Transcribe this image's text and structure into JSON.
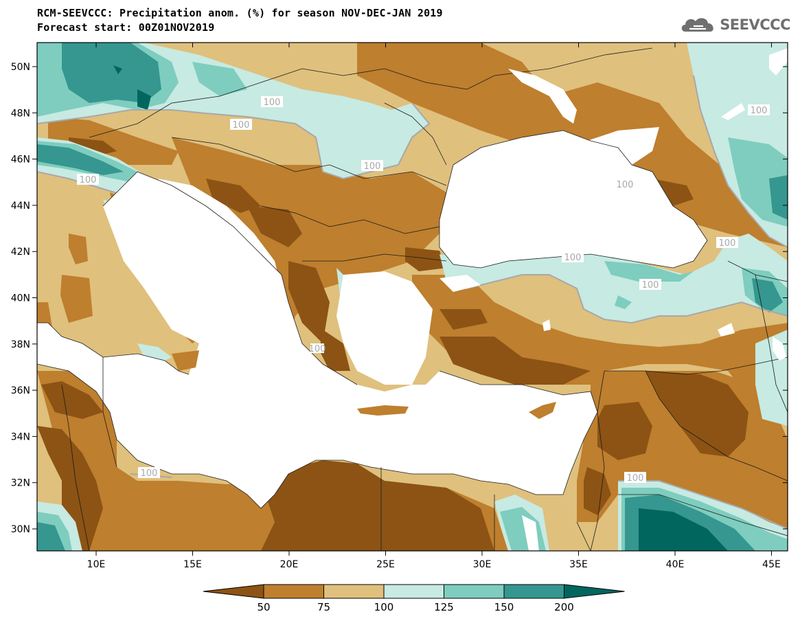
{
  "header": {
    "title_line1": "RCM-SEEVCCC: Precipitation anom. (%) for season NOV-DEC-JAN 2019",
    "title_line2": "Forecast start: 00Z01NOV2019",
    "logo_text": "SEEVCCC",
    "logo_icon": "cloud-icon"
  },
  "map": {
    "lon_ticks": [
      "10E",
      "15E",
      "20E",
      "25E",
      "30E",
      "35E",
      "40E",
      "45E"
    ],
    "lat_ticks": [
      "50N",
      "48N",
      "46N",
      "44N",
      "42N",
      "40N",
      "38N",
      "36N",
      "34N",
      "32N",
      "30N"
    ],
    "contour_labels": [
      "100",
      "100",
      "100",
      "100",
      "100",
      "100",
      "100",
      "100",
      "100",
      "100",
      "100",
      "100"
    ],
    "colors": {
      "sea": "#ffffff",
      "below_50": "#8c5314",
      "c50_75": "#be7f2e",
      "c75_100": "#dfc07d",
      "c100_125": "#c7eae2",
      "c125_150": "#7ecdbf",
      "c150_200": "#35978f",
      "above_200": "#01665e",
      "contour": "#a8a8a8"
    }
  },
  "colorbar": {
    "labels": [
      "50",
      "75",
      "100",
      "125",
      "150",
      "200"
    ],
    "colors": [
      "#8c5314",
      "#be7f2e",
      "#dfc07d",
      "#c7eae2",
      "#7ecdbf",
      "#35978f",
      "#01665e"
    ]
  }
}
